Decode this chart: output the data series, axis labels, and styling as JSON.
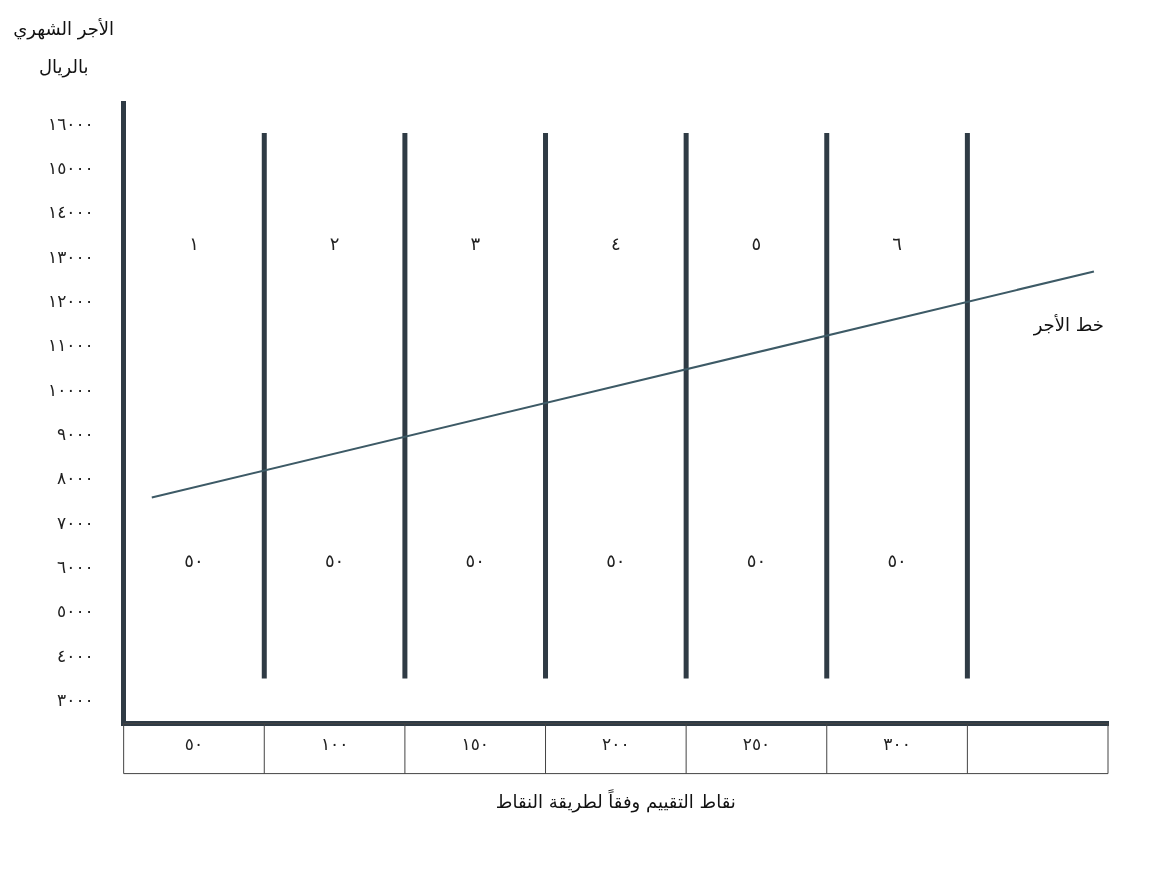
{
  "chart_data": {
    "type": "line",
    "xlabel": "نقاط التقييم وفقاً لطريقة النقاط",
    "ylabel": "الأجر الشهري\nبالريال",
    "xlim": [
      25,
      375
    ],
    "ylim": [
      2500,
      16500
    ],
    "xticks": [
      {
        "value": 50,
        "label": "٥٠"
      },
      {
        "value": 100,
        "label": "١٠٠"
      },
      {
        "value": 150,
        "label": "١٥٠"
      },
      {
        "value": 200,
        "label": "٢٠٠"
      },
      {
        "value": 250,
        "label": "٢٥٠"
      },
      {
        "value": 300,
        "label": "٣٠٠"
      }
    ],
    "yticks": [
      {
        "value": 3000,
        "label": "٣٠٠٠"
      },
      {
        "value": 4000,
        "label": "٤٠٠٠"
      },
      {
        "value": 5000,
        "label": "٥٠٠٠"
      },
      {
        "value": 6000,
        "label": "٦٠٠٠"
      },
      {
        "value": 7000,
        "label": "٧٠٠٠"
      },
      {
        "value": 8000,
        "label": "٨٠٠٠"
      },
      {
        "value": 9000,
        "label": "٩٠٠٠"
      },
      {
        "value": 10000,
        "label": "١٠٠٠٠"
      },
      {
        "value": 11000,
        "label": "١١٠٠٠"
      },
      {
        "value": 12000,
        "label": "١٢٠٠٠"
      },
      {
        "value": 13000,
        "label": "١٣٠٠٠"
      },
      {
        "value": 14000,
        "label": "١٤٠٠٠"
      },
      {
        "value": 15000,
        "label": "١٥٠٠٠"
      },
      {
        "value": 16000,
        "label": "١٦٠٠٠"
      }
    ],
    "series": [
      {
        "name": "خط الأجر",
        "color": "#3d5a66",
        "x": [
          35,
          370
        ],
        "values": [
          7600,
          12700
        ]
      }
    ],
    "ref_lines": [
      {
        "axis": "x",
        "value": 75,
        "color": "#2f3b45"
      },
      {
        "axis": "x",
        "value": 125,
        "color": "#2f3b45"
      },
      {
        "axis": "x",
        "value": 175,
        "color": "#2f3b45"
      },
      {
        "axis": "x",
        "value": 225,
        "color": "#2f3b45"
      },
      {
        "axis": "x",
        "value": 275,
        "color": "#2f3b45"
      },
      {
        "axis": "x",
        "value": 325,
        "color": "#2f3b45"
      }
    ],
    "annotations": [
      "١",
      "٢",
      "٣",
      "٤",
      "٥",
      "٦",
      "٥٠",
      "٥٠",
      "٥٠",
      "٥٠",
      "٥٠",
      "٥٠"
    ],
    "grid": false,
    "legend": false,
    "marker": "none",
    "line_style": "solid"
  }
}
